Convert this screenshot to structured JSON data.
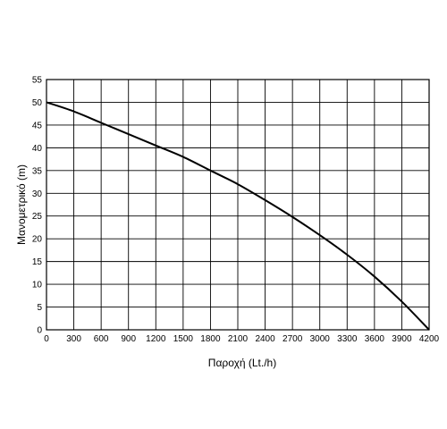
{
  "chart_data": {
    "type": "line",
    "title": "",
    "xlabel": "Παροχή (Lt./h)",
    "ylabel": "Μανομετρικό  (m)",
    "xlim": [
      0,
      4200
    ],
    "ylim": [
      0,
      55
    ],
    "x_ticks": [
      0,
      300,
      600,
      900,
      1200,
      1500,
      1800,
      2100,
      2400,
      2700,
      3000,
      3300,
      3600,
      3900,
      4200
    ],
    "y_ticks": [
      0,
      5,
      10,
      15,
      20,
      25,
      30,
      35,
      40,
      45,
      50,
      55
    ],
    "grid": true,
    "legend": "none",
    "series": [
      {
        "color": "#000000",
        "x": [
          0,
          300,
          600,
          900,
          1200,
          1500,
          1800,
          2100,
          2400,
          2700,
          3000,
          3300,
          3600,
          3900,
          4200
        ],
        "y": [
          50,
          48,
          45.5,
          43,
          40.5,
          38,
          35,
          32,
          28.5,
          24.8,
          20.8,
          16.5,
          11.7,
          6.2,
          0
        ]
      }
    ]
  }
}
